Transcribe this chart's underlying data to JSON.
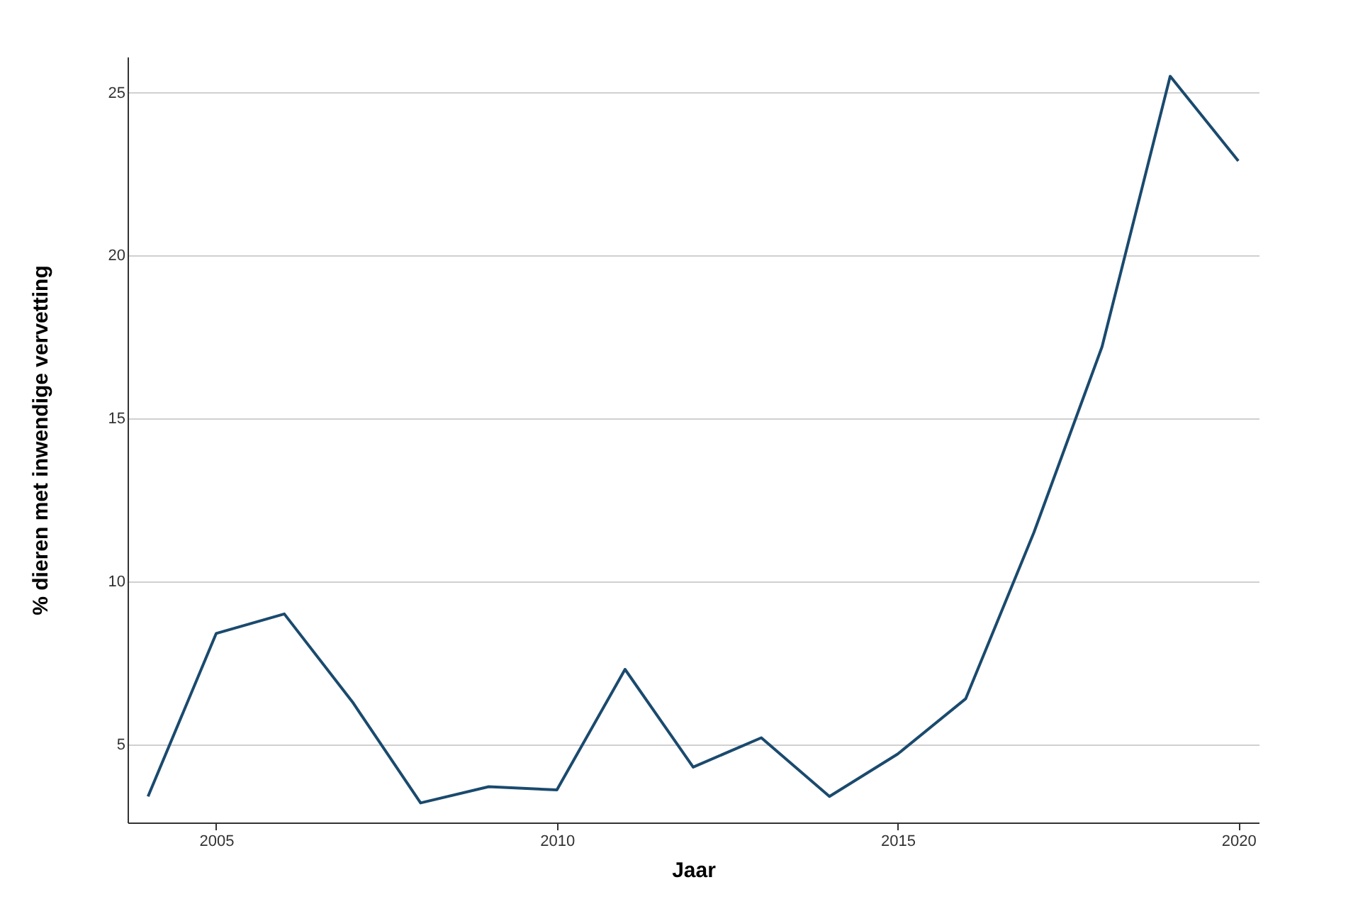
{
  "chart_data": {
    "type": "line",
    "xlabel": "Jaar",
    "ylabel": "% dieren met inwendige vervetting",
    "x": [
      2004,
      2005,
      2006,
      2007,
      2008,
      2009,
      2010,
      2011,
      2012,
      2013,
      2014,
      2015,
      2016,
      2017,
      2018,
      2019,
      2020
    ],
    "series": [
      {
        "color": "#1a4a6e",
        "values": [
          3.4,
          8.4,
          9.0,
          6.3,
          3.2,
          3.7,
          3.6,
          7.3,
          4.3,
          5.2,
          3.4,
          4.7,
          6.4,
          11.5,
          17.2,
          25.5,
          22.9
        ]
      }
    ],
    "xlim": [
      2003.7,
      2020.3
    ],
    "xticks": [
      2005,
      2010,
      2015,
      2020
    ],
    "ylim": [
      2.6,
      26.1
    ],
    "yticks": [
      5,
      10,
      15,
      20,
      25
    ],
    "grid": "y",
    "marker": "none",
    "line_style": "solid"
  }
}
